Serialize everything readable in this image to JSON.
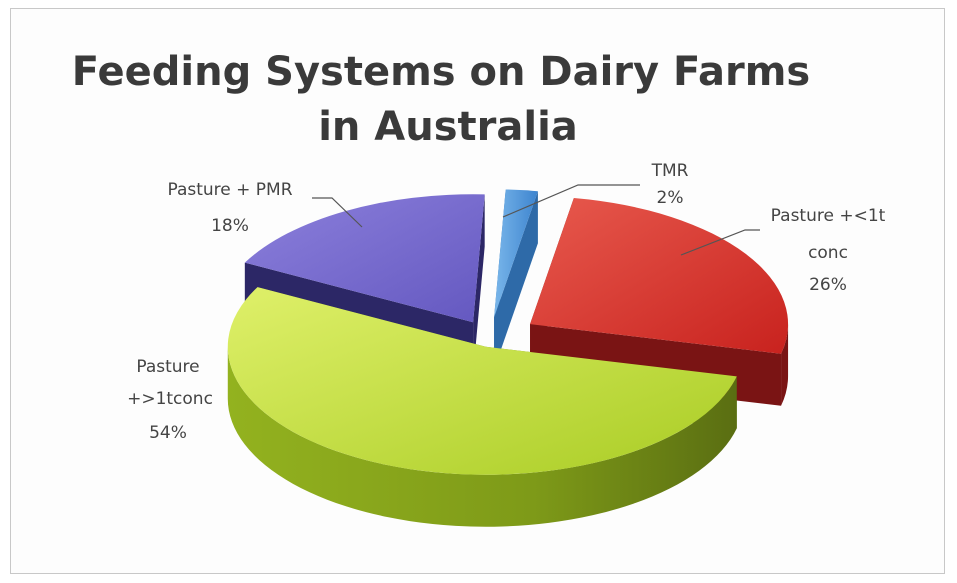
{
  "chart_data": {
    "type": "pie",
    "title_lines": [
      "Feeding Systems on Dairy Farms",
      "in Australia"
    ],
    "slices": [
      {
        "label_lines": [
          "TMR"
        ],
        "pct_label": "2%",
        "value": 2,
        "top_color": "#5b9bd5",
        "side_color": "#2e6aa8"
      },
      {
        "label_lines": [
          "Pasture +<1t",
          "conc"
        ],
        "pct_label": "26%",
        "value": 26,
        "top_color": "#e0403a",
        "side_color": "#7a1414"
      },
      {
        "label_lines": [
          "Pasture",
          "+>1tconc"
        ],
        "pct_label": "54%",
        "value": 54,
        "top_color": "#c4e23a",
        "side_color": "#6e8a1a"
      },
      {
        "label_lines": [
          "Pasture + PMR"
        ],
        "pct_label": "18%",
        "value": 18,
        "top_color": "#7a6ccf",
        "side_color": "#2c2766"
      }
    ]
  }
}
